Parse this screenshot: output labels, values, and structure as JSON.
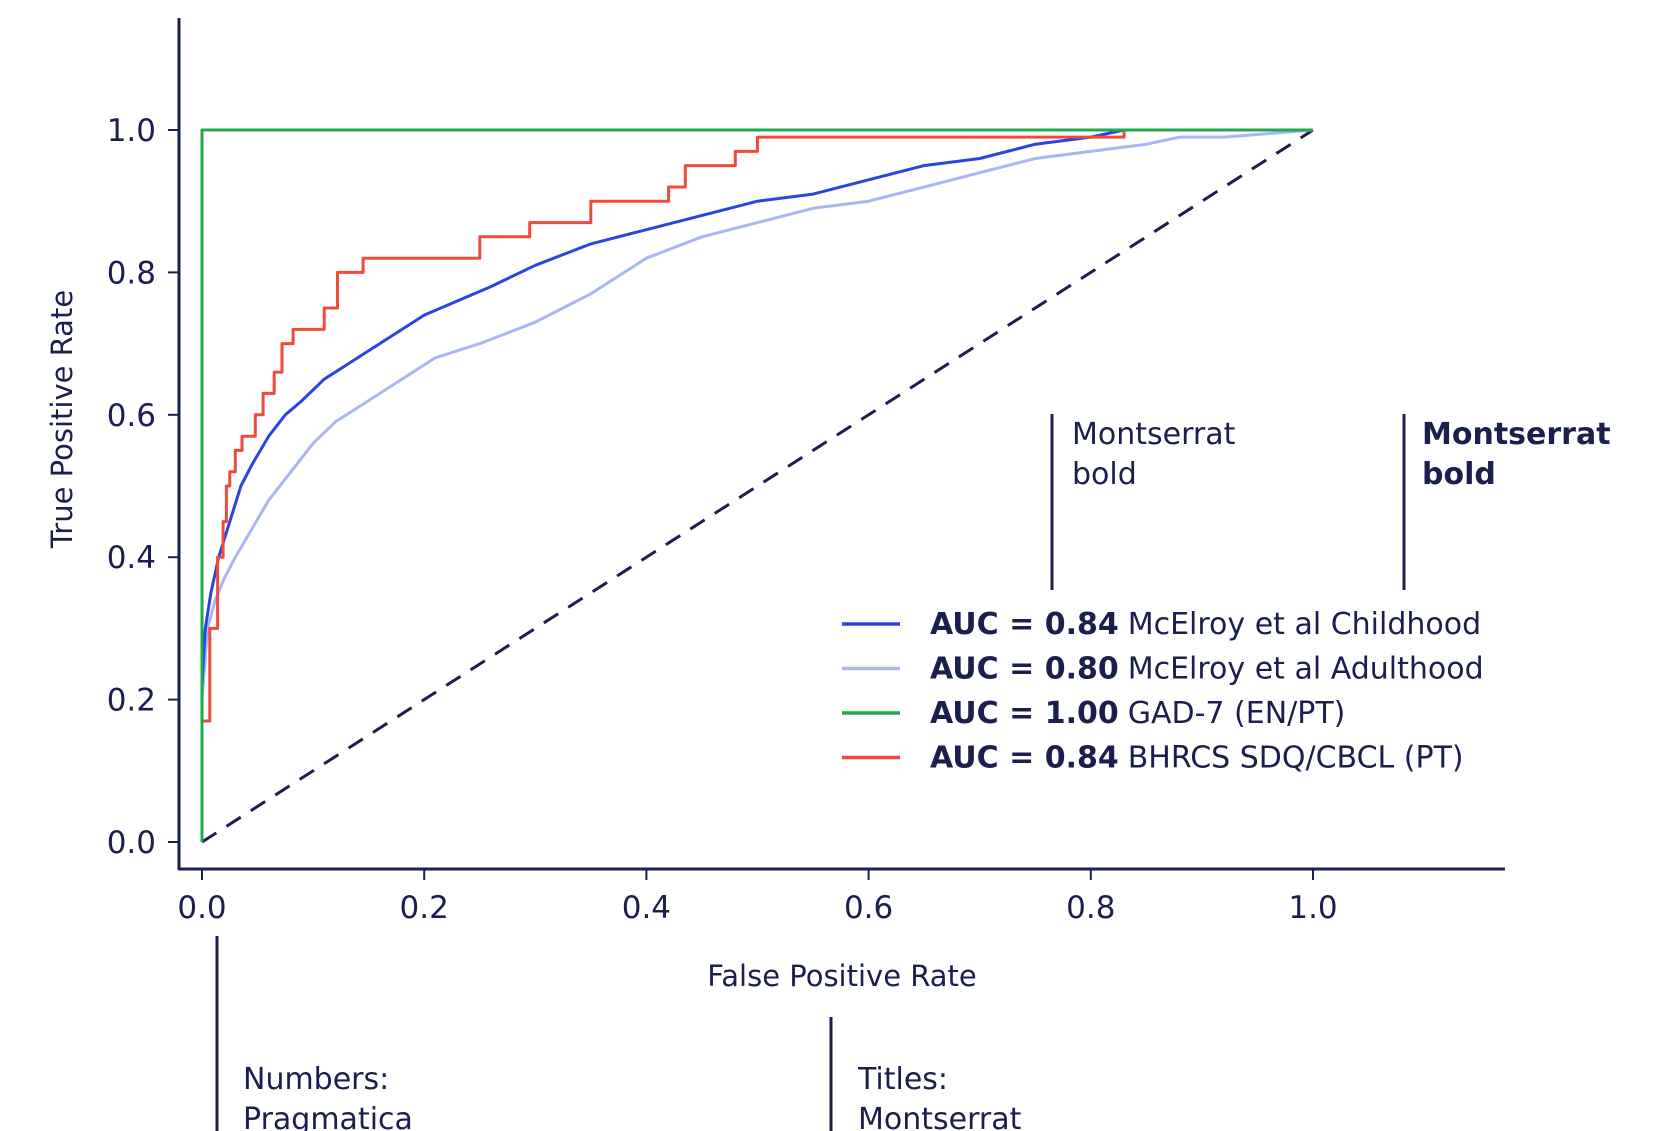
{
  "chart_data": {
    "type": "line",
    "xlabel": "False Positive Rate",
    "ylabel": "True Positive Rate",
    "xlim": [
      0,
      1.15
    ],
    "ylim": [
      -0.03,
      1.15
    ],
    "x_ticks": [
      "0.0",
      "0.2",
      "0.4",
      "0.6",
      "0.8",
      "1.0"
    ],
    "y_ticks": [
      "0.0",
      "0.2",
      "0.4",
      "0.6",
      "0.8",
      "1.0"
    ],
    "grid": false,
    "legend_position": "lower-right",
    "series": [
      {
        "name": "McElroy et al Childhood",
        "auc_label": "AUC = 0.84",
        "color": "#2b45e0",
        "style": "solid",
        "x": [
          0.0,
          0.003,
          0.008,
          0.015,
          0.025,
          0.035,
          0.045,
          0.06,
          0.075,
          0.09,
          0.11,
          0.13,
          0.15,
          0.17,
          0.2,
          0.23,
          0.26,
          0.3,
          0.35,
          0.4,
          0.45,
          0.5,
          0.55,
          0.6,
          0.65,
          0.7,
          0.75,
          0.8,
          0.83,
          0.86,
          0.9,
          0.93,
          1.0
        ],
        "y": [
          0.22,
          0.3,
          0.35,
          0.4,
          0.45,
          0.5,
          0.53,
          0.57,
          0.6,
          0.62,
          0.65,
          0.67,
          0.69,
          0.71,
          0.74,
          0.76,
          0.78,
          0.81,
          0.84,
          0.86,
          0.88,
          0.9,
          0.91,
          0.93,
          0.95,
          0.96,
          0.98,
          0.99,
          1.0,
          1.0,
          1.0,
          1.0,
          1.0
        ]
      },
      {
        "name": "McElroy et al Adulthood",
        "auc_label": "AUC = 0.80",
        "color": "#a9b6f5",
        "style": "solid",
        "x": [
          0.0,
          0.005,
          0.012,
          0.02,
          0.03,
          0.045,
          0.06,
          0.08,
          0.1,
          0.12,
          0.15,
          0.18,
          0.21,
          0.25,
          0.3,
          0.35,
          0.4,
          0.45,
          0.5,
          0.55,
          0.6,
          0.65,
          0.7,
          0.75,
          0.8,
          0.85,
          0.88,
          0.92,
          1.0
        ],
        "y": [
          0.2,
          0.3,
          0.34,
          0.37,
          0.4,
          0.44,
          0.48,
          0.52,
          0.56,
          0.59,
          0.62,
          0.65,
          0.68,
          0.7,
          0.73,
          0.77,
          0.82,
          0.85,
          0.87,
          0.89,
          0.9,
          0.92,
          0.94,
          0.96,
          0.97,
          0.98,
          0.99,
          0.99,
          1.0
        ]
      },
      {
        "name": "GAD-7 (EN/PT)",
        "auc_label": "AUC = 1.00",
        "color": "#1faa4e",
        "style": "solid",
        "x": [
          0.0,
          0.0,
          1.0
        ],
        "y": [
          0.0,
          1.0,
          1.0
        ]
      },
      {
        "name": "BHRCS SDQ/CBCL (PT)",
        "auc_label": "AUC = 0.84",
        "color": "#ef4b3c",
        "style": "step",
        "x": [
          0.0,
          0.0,
          0.007,
          0.007,
          0.014,
          0.014,
          0.019,
          0.019,
          0.022,
          0.022,
          0.025,
          0.025,
          0.03,
          0.03,
          0.036,
          0.036,
          0.048,
          0.048,
          0.055,
          0.055,
          0.065,
          0.065,
          0.072,
          0.072,
          0.082,
          0.082,
          0.11,
          0.11,
          0.122,
          0.122,
          0.145,
          0.145,
          0.25,
          0.25,
          0.295,
          0.295,
          0.35,
          0.35,
          0.42,
          0.42,
          0.435,
          0.435,
          0.48,
          0.48,
          0.5,
          0.5,
          0.83,
          0.83,
          1.0
        ],
        "y": [
          0.0,
          0.17,
          0.17,
          0.3,
          0.3,
          0.4,
          0.4,
          0.45,
          0.45,
          0.5,
          0.5,
          0.52,
          0.52,
          0.55,
          0.55,
          0.57,
          0.57,
          0.6,
          0.6,
          0.63,
          0.63,
          0.66,
          0.66,
          0.7,
          0.7,
          0.72,
          0.72,
          0.75,
          0.75,
          0.8,
          0.8,
          0.82,
          0.82,
          0.85,
          0.85,
          0.87,
          0.87,
          0.9,
          0.9,
          0.92,
          0.92,
          0.95,
          0.95,
          0.97,
          0.97,
          0.99,
          0.99,
          1.0,
          1.0
        ]
      }
    ],
    "reference_line": {
      "x": [
        0,
        1
      ],
      "y": [
        0,
        1
      ],
      "color": "#1a1f4e",
      "style": "dashed"
    }
  },
  "annotations": {
    "montserrat_regular": [
      "Montserrat",
      "bold"
    ],
    "montserrat_bold": [
      "Montserrat",
      "bold"
    ],
    "numbers_note": [
      "Numbers:",
      "Pragmatica"
    ],
    "titles_note": [
      "Titles:",
      "Montserrat"
    ]
  },
  "colors": {
    "text": "#1a1f4e",
    "axis": "#1a1f4e",
    "background": "#ffffff"
  }
}
